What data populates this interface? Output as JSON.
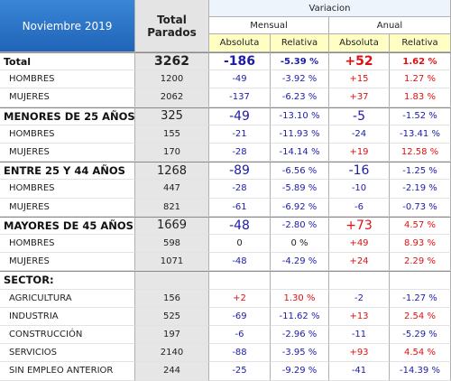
{
  "header": {
    "period": "Noviembre 2019",
    "total": "Total Parados",
    "variation": "Variacion",
    "monthly": "Mensual",
    "annual": "Anual",
    "absolute": "Absoluta",
    "relative": "Relativa"
  },
  "groups": [
    {
      "label": "Total",
      "cells": [
        "3262",
        "-186",
        "-5.39 %",
        "+52",
        "1.62 %"
      ],
      "rows": [
        {
          "label": "HOMBRES",
          "cells": [
            "1200",
            "-49",
            "-3.92 %",
            "+15",
            "1.27 %"
          ]
        },
        {
          "label": "MUJERES",
          "cells": [
            "2062",
            "-137",
            "-6.23 %",
            "+37",
            "1.83 %"
          ]
        }
      ]
    },
    {
      "label": "MENORES DE 25 AÑOS:",
      "cells": [
        "325",
        "-49",
        "-13.10 %",
        "-5",
        "-1.52 %"
      ],
      "rows": [
        {
          "label": "HOMBRES",
          "cells": [
            "155",
            "-21",
            "-11.93 %",
            "-24",
            "-13.41 %"
          ]
        },
        {
          "label": "MUJERES",
          "cells": [
            "170",
            "-28",
            "-14.14 %",
            "+19",
            "12.58 %"
          ]
        }
      ]
    },
    {
      "label": "ENTRE 25 Y 44 AÑOS",
      "cells": [
        "1268",
        "-89",
        "-6.56 %",
        "-16",
        "-1.25 %"
      ],
      "rows": [
        {
          "label": "HOMBRES",
          "cells": [
            "447",
            "-28",
            "-5.89 %",
            "-10",
            "-2.19 %"
          ]
        },
        {
          "label": "MUJERES",
          "cells": [
            "821",
            "-61",
            "-6.92 %",
            "-6",
            "-0.73 %"
          ]
        }
      ]
    },
    {
      "label": "MAYORES DE 45 AÑOS",
      "cells": [
        "1669",
        "-48",
        "-2.80 %",
        "+73",
        "4.57 %"
      ],
      "rows": [
        {
          "label": "HOMBRES",
          "cells": [
            "598",
            "0",
            "0 %",
            "+49",
            "8.93 %"
          ]
        },
        {
          "label": "MUJERES",
          "cells": [
            "1071",
            "-48",
            "-4.29 %",
            "+24",
            "2.29 %"
          ]
        }
      ]
    },
    {
      "label": "SECTOR:",
      "rows": [
        {
          "label": "AGRICULTURA",
          "cells": [
            "156",
            "+2",
            "1.30 %",
            "-2",
            "-1.27 %"
          ]
        },
        {
          "label": "INDUSTRIA",
          "cells": [
            "525",
            "-69",
            "-11.62 %",
            "+13",
            "2.54 %"
          ]
        },
        {
          "label": "CONSTRUCCIÓN",
          "cells": [
            "197",
            "-6",
            "-2.96 %",
            "-11",
            "-5.29 %"
          ]
        },
        {
          "label": "SERVICIOS",
          "cells": [
            "2140",
            "-88",
            "-3.95 %",
            "+93",
            "4.54 %"
          ]
        },
        {
          "label": "SIN EMPLEO ANTERIOR",
          "cells": [
            "244",
            "-25",
            "-9.29 %",
            "-41",
            "-14.39 %"
          ]
        }
      ]
    }
  ]
}
